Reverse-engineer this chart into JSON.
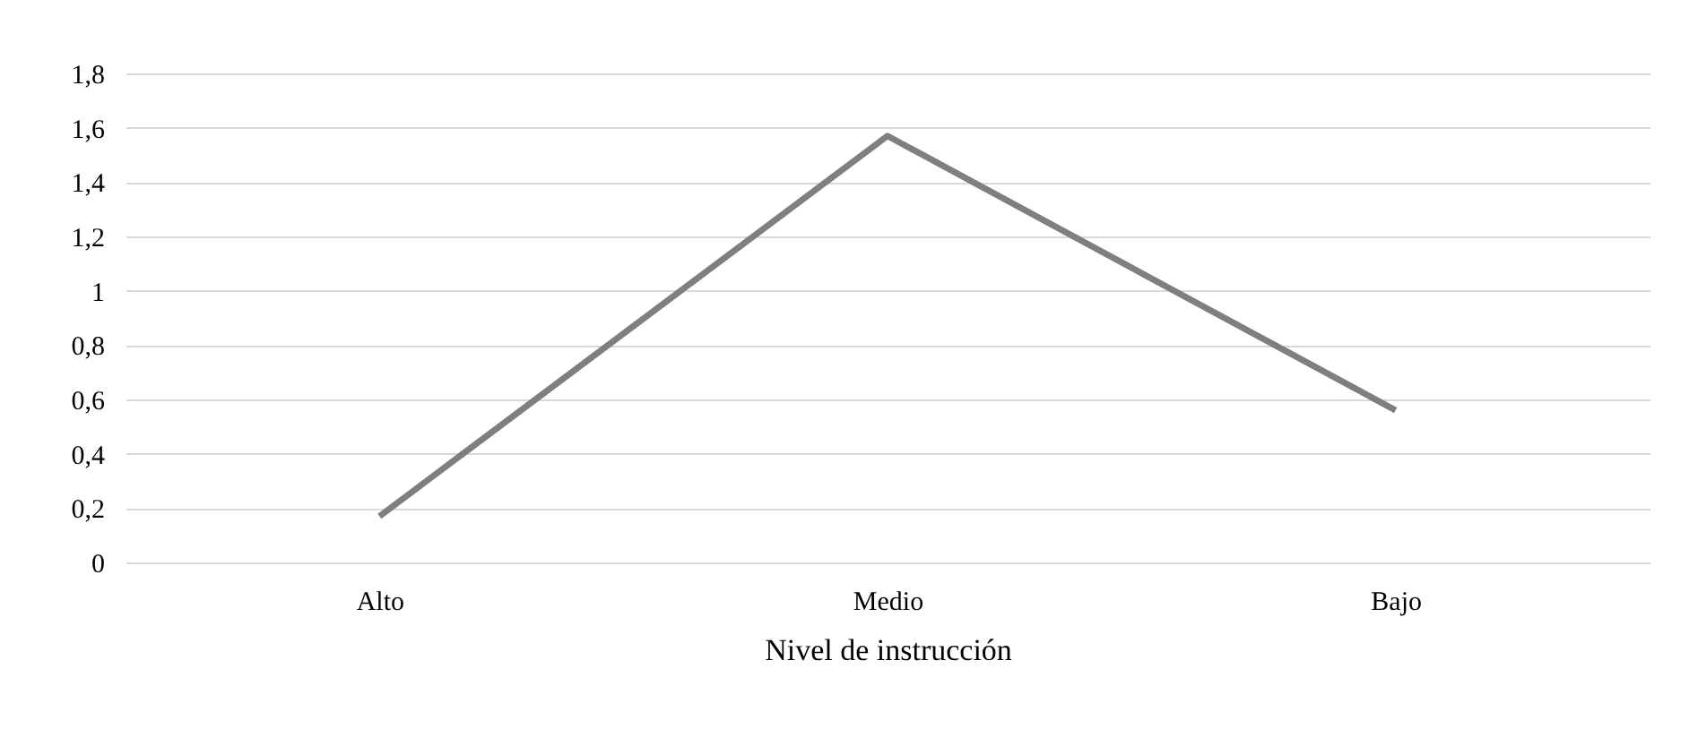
{
  "chart_data": {
    "type": "line",
    "xlabel": "Nivel de instrucción",
    "categories": [
      "Alto",
      "Medio",
      "Bajo"
    ],
    "series": [
      {
        "color": "#7f7f7f",
        "values": [
          0.17,
          1.57,
          0.56
        ]
      }
    ],
    "ylim": [
      0,
      1.8
    ],
    "yticks": [
      0,
      {
        "value": 0.2,
        "label": "0,2"
      },
      {
        "value": 0.4,
        "label": "0,4"
      },
      {
        "value": 0.6,
        "label": "0,6"
      },
      {
        "value": 0.8,
        "label": "0,8"
      },
      1,
      {
        "value": 1.2,
        "label": "1,2"
      },
      {
        "value": 1.4,
        "label": "1,4"
      },
      {
        "value": 1.6,
        "label": "1,6"
      },
      {
        "value": 1.8,
        "label": "1,8"
      }
    ],
    "grid": "y",
    "marker": "none",
    "line_style": "solid"
  }
}
